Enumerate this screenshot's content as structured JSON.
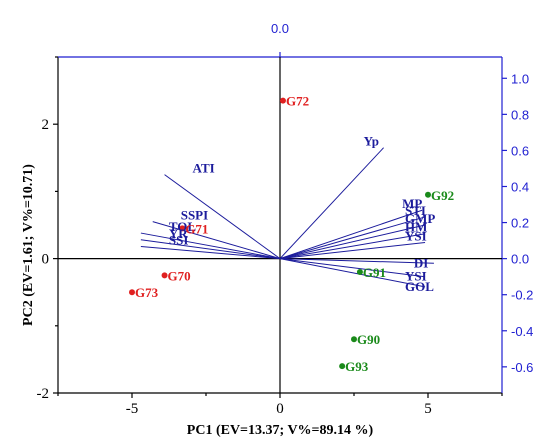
{
  "chart_data": {
    "type": "scatter",
    "title": "",
    "xlabel": "PC1 (EV=13.37; V%=89.14 %)",
    "ylabel": "PC2 (EV=1.61; V%=10.71)",
    "xlim": [
      -7.5,
      7.5
    ],
    "ylim": [
      -2.0,
      3.0
    ],
    "x_ticks": [
      -5,
      0,
      5
    ],
    "x_tick_labels": [
      "-5",
      "0",
      "5"
    ],
    "y_ticks": [
      -2,
      0,
      2
    ],
    "y_tick_labels": [
      "-2",
      "0",
      "2"
    ],
    "secondary_axes": {
      "top_tick_value": 0.0,
      "top_tick_label": "0.0",
      "right_ylim": [
        -0.745,
        1.118
      ],
      "right_ticks": [
        -0.6,
        -0.4,
        -0.2,
        0.0,
        0.2,
        0.4,
        0.6,
        0.8,
        1.0
      ],
      "right_tick_labels": [
        "-0.6",
        "-0.4",
        "-0.2",
        "0.0",
        "0.2",
        "0.4",
        "0.6",
        "0.8",
        "1.0"
      ],
      "color": "#1f1fd1"
    },
    "grid": false,
    "reference_lines": {
      "x": 0,
      "y": 0
    },
    "genotypes": [
      {
        "label": "G72",
        "x": 0.1,
        "y": 2.35,
        "color": "#e02020"
      },
      {
        "label": "G71",
        "x": -3.3,
        "y": 0.45,
        "color": "#e02020"
      },
      {
        "label": "G70",
        "x": -3.9,
        "y": -0.25,
        "color": "#e02020"
      },
      {
        "label": "G73",
        "x": -5.0,
        "y": -0.5,
        "color": "#e02020"
      },
      {
        "label": "G92",
        "x": 5.0,
        "y": 0.95,
        "color": "#1a8a1a"
      },
      {
        "label": "G91",
        "x": 2.7,
        "y": -0.2,
        "color": "#1a8a1a"
      },
      {
        "label": "G90",
        "x": 2.5,
        "y": -1.2,
        "color": "#1a8a1a"
      },
      {
        "label": "G93",
        "x": 2.1,
        "y": -1.6,
        "color": "#1a8a1a"
      }
    ],
    "vectors": [
      {
        "label": "Yp",
        "x": 3.5,
        "y": 1.65
      },
      {
        "label": "ATI",
        "x": -3.9,
        "y": 1.25
      },
      {
        "label": "SSPI",
        "x": -4.3,
        "y": 0.55
      },
      {
        "label": "TOL",
        "x": -4.7,
        "y": 0.38
      },
      {
        "label": "YR",
        "x": -4.7,
        "y": 0.28
      },
      {
        "label": "SSI",
        "x": -4.7,
        "y": 0.18
      },
      {
        "label": "MP",
        "x": 4.8,
        "y": 0.72
      },
      {
        "label": "STI",
        "x": 4.9,
        "y": 0.62
      },
      {
        "label": "GMP",
        "x": 4.9,
        "y": 0.5
      },
      {
        "label": "HM",
        "x": 4.9,
        "y": 0.37
      },
      {
        "label": "YSI",
        "x": 4.9,
        "y": 0.24
      },
      {
        "label": "DI",
        "x": 5.2,
        "y": -0.07
      },
      {
        "label": "YSI",
        "x": 4.9,
        "y": -0.27
      },
      {
        "label": "GOL",
        "x": 4.9,
        "y": -0.42
      }
    ],
    "vector_color": "#1c1c9c",
    "label_offsets_note": ""
  }
}
